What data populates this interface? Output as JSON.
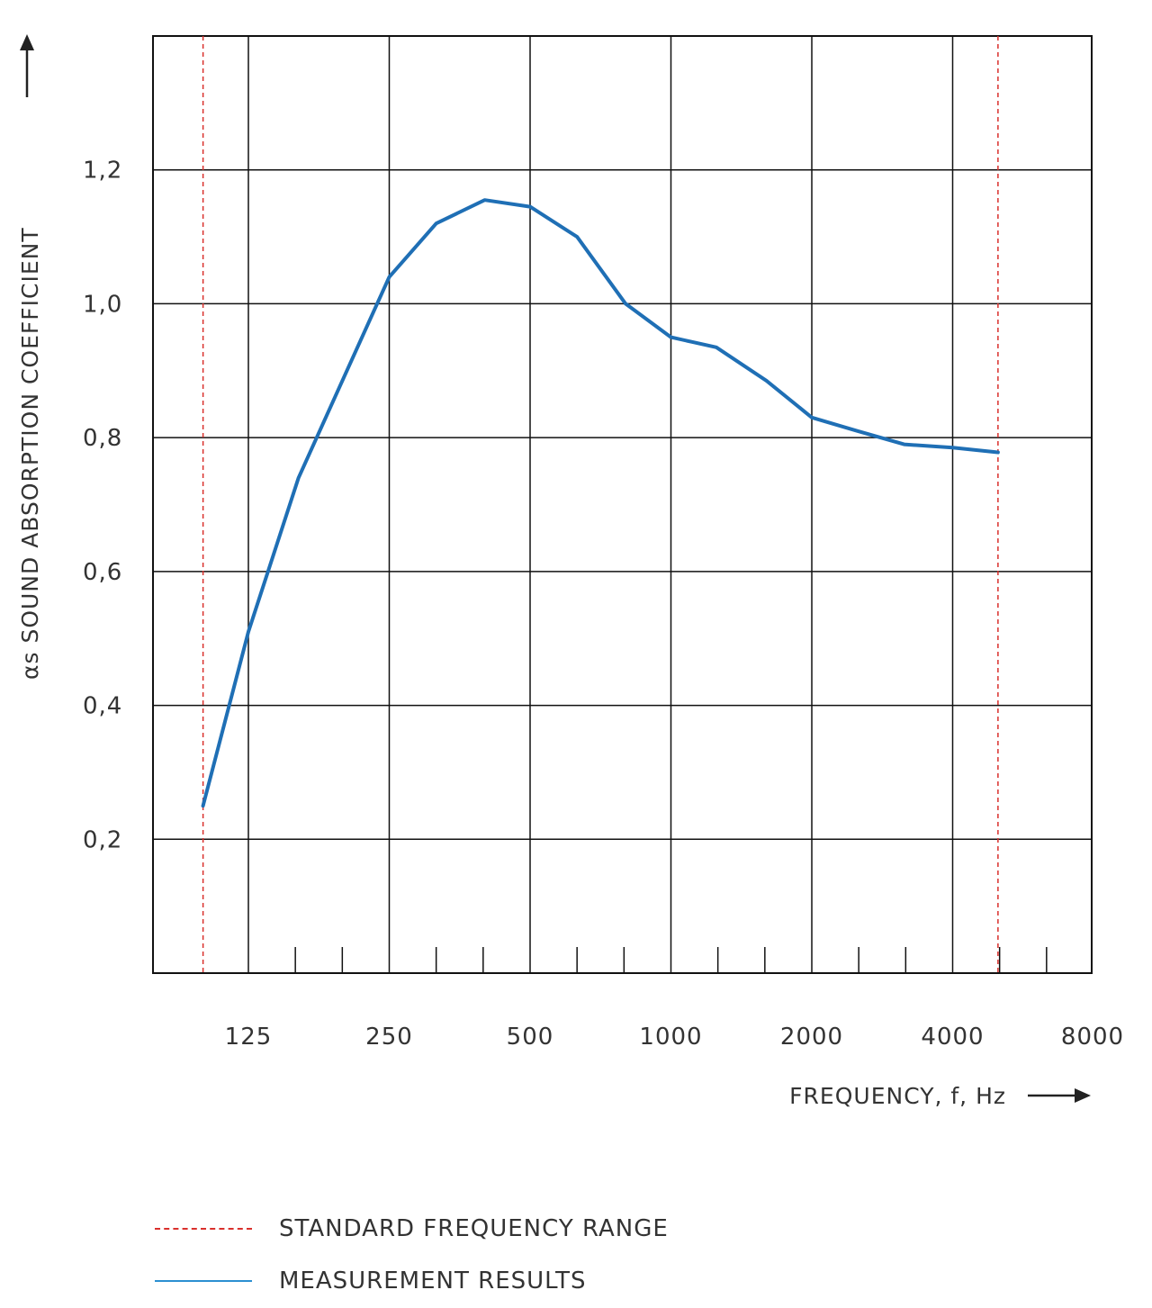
{
  "chart_data": {
    "type": "line",
    "xlabel": "FREQUENCY, f, Hz",
    "ylabel": "αs SOUND ABSORPTION COEFFICIENT",
    "x_scale": "log2",
    "x_ticks": [
      "125",
      "250",
      "500",
      "1000",
      "2000",
      "4000",
      "8000"
    ],
    "y_ticks": [
      "0,2",
      "0,4",
      "0,6",
      "0,8",
      "1,0",
      "1,2"
    ],
    "xlim": [
      100,
      8000
    ],
    "ylim": [
      0,
      1.4
    ],
    "grid": true,
    "standard_range": [
      100,
      5000
    ],
    "series": [
      {
        "name": "MEASUREMENT RESULTS",
        "color": "#1f6fb5",
        "x": [
          100,
          125,
          160,
          200,
          250,
          315,
          400,
          500,
          630,
          800,
          1000,
          1250,
          1600,
          2000,
          2500,
          3150,
          4000,
          5000
        ],
        "y": [
          0.25,
          0.51,
          0.74,
          0.89,
          1.04,
          1.12,
          1.155,
          1.145,
          1.1,
          1.0,
          0.95,
          0.935,
          0.885,
          0.83,
          0.81,
          0.79,
          0.785,
          0.778
        ]
      }
    ]
  },
  "legend": {
    "standard_label": "STANDARD FREQUENCY RANGE",
    "standard_color": "#d9302c",
    "measurement_label": "MEASUREMENT RESULTS",
    "measurement_color": "#2b8fd1"
  }
}
